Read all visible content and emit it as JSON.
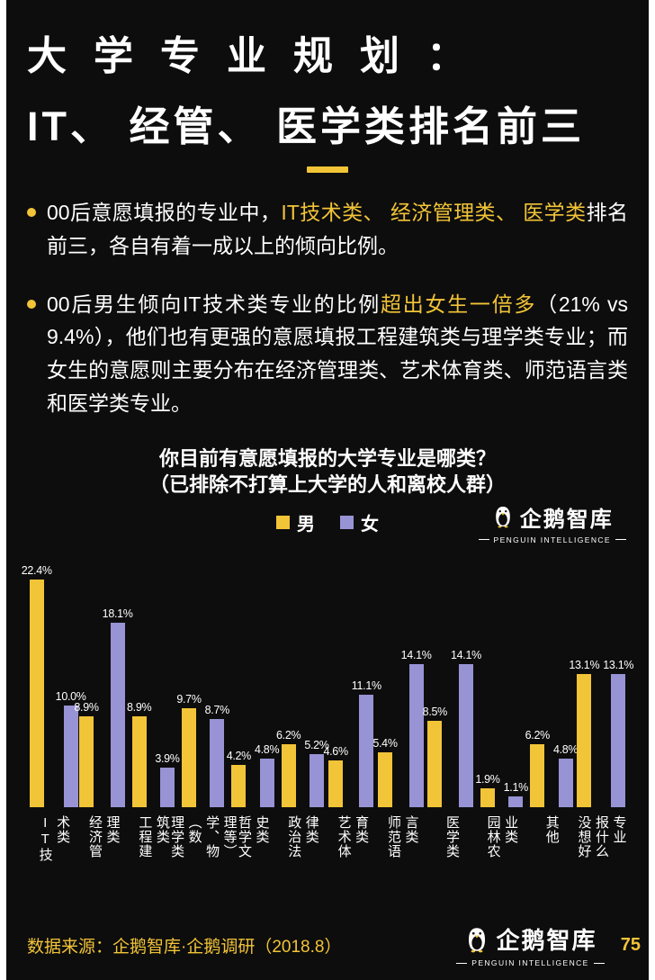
{
  "title": {
    "line1": "大学专业规划：",
    "line2": "IT、 经管、 医学类排名前三"
  },
  "bullets": [
    {
      "segments": [
        {
          "text": "00后意愿填报的专业中，",
          "highlight": false
        },
        {
          "text": "IT技术类、 经济管理类、 医学类",
          "highlight": true
        },
        {
          "text": "排名前三，各自有着一成以上的倾向比例。",
          "highlight": false
        }
      ]
    },
    {
      "segments": [
        {
          "text": "00后男生倾向IT技术类专业的比例",
          "highlight": false
        },
        {
          "text": "超出女生一倍多",
          "highlight": true
        },
        {
          "text": "（21% vs 9.4%），他们也有更强的意愿填报工程建筑类与理学类专业；而女生的意愿则主要分布在经济管理类、艺术体育类、师范语言类和医学类专业。",
          "highlight": false
        }
      ]
    }
  ],
  "chart_data": {
    "type": "bar",
    "title_line1": "你目前有意愿填报的大学专业是哪类？",
    "title_line2": "（已排除不打算上大学的人和离校人群）",
    "legend_position": "top-center",
    "grid": false,
    "value_suffix": "%",
    "ylim": [
      0,
      24
    ],
    "categories": [
      "IT技术类",
      "经济管理类",
      "工程建筑类",
      "理学类（数学、物理等）",
      "哲学文史类",
      "政治法律类",
      "艺术体育类",
      "师范语言类",
      "医学类",
      "园林农业类",
      "其他",
      "没想好报什么专业"
    ],
    "series": [
      {
        "name": "男",
        "color": "#f2c437",
        "values": [
          22.4,
          8.9,
          8.9,
          9.7,
          4.2,
          6.2,
          4.6,
          5.4,
          8.5,
          1.9,
          6.2,
          13.1
        ]
      },
      {
        "name": "女",
        "color": "#9793d4",
        "values": [
          10.0,
          18.1,
          3.9,
          8.7,
          4.8,
          5.2,
          11.1,
          14.1,
          14.1,
          1.1,
          4.8,
          13.1
        ]
      }
    ]
  },
  "logo": {
    "name": "企鹅智库",
    "subtitle": "PENGUIN INTELLIGENCE"
  },
  "footer": {
    "source": "数据来源：企鹅智库·企鹅调研（2018.8）",
    "page": "75"
  },
  "colors": {
    "background": "#0d0d0d",
    "male_yellow": "#f2c437",
    "female_purple": "#9793d4",
    "text": "#ffffff"
  }
}
